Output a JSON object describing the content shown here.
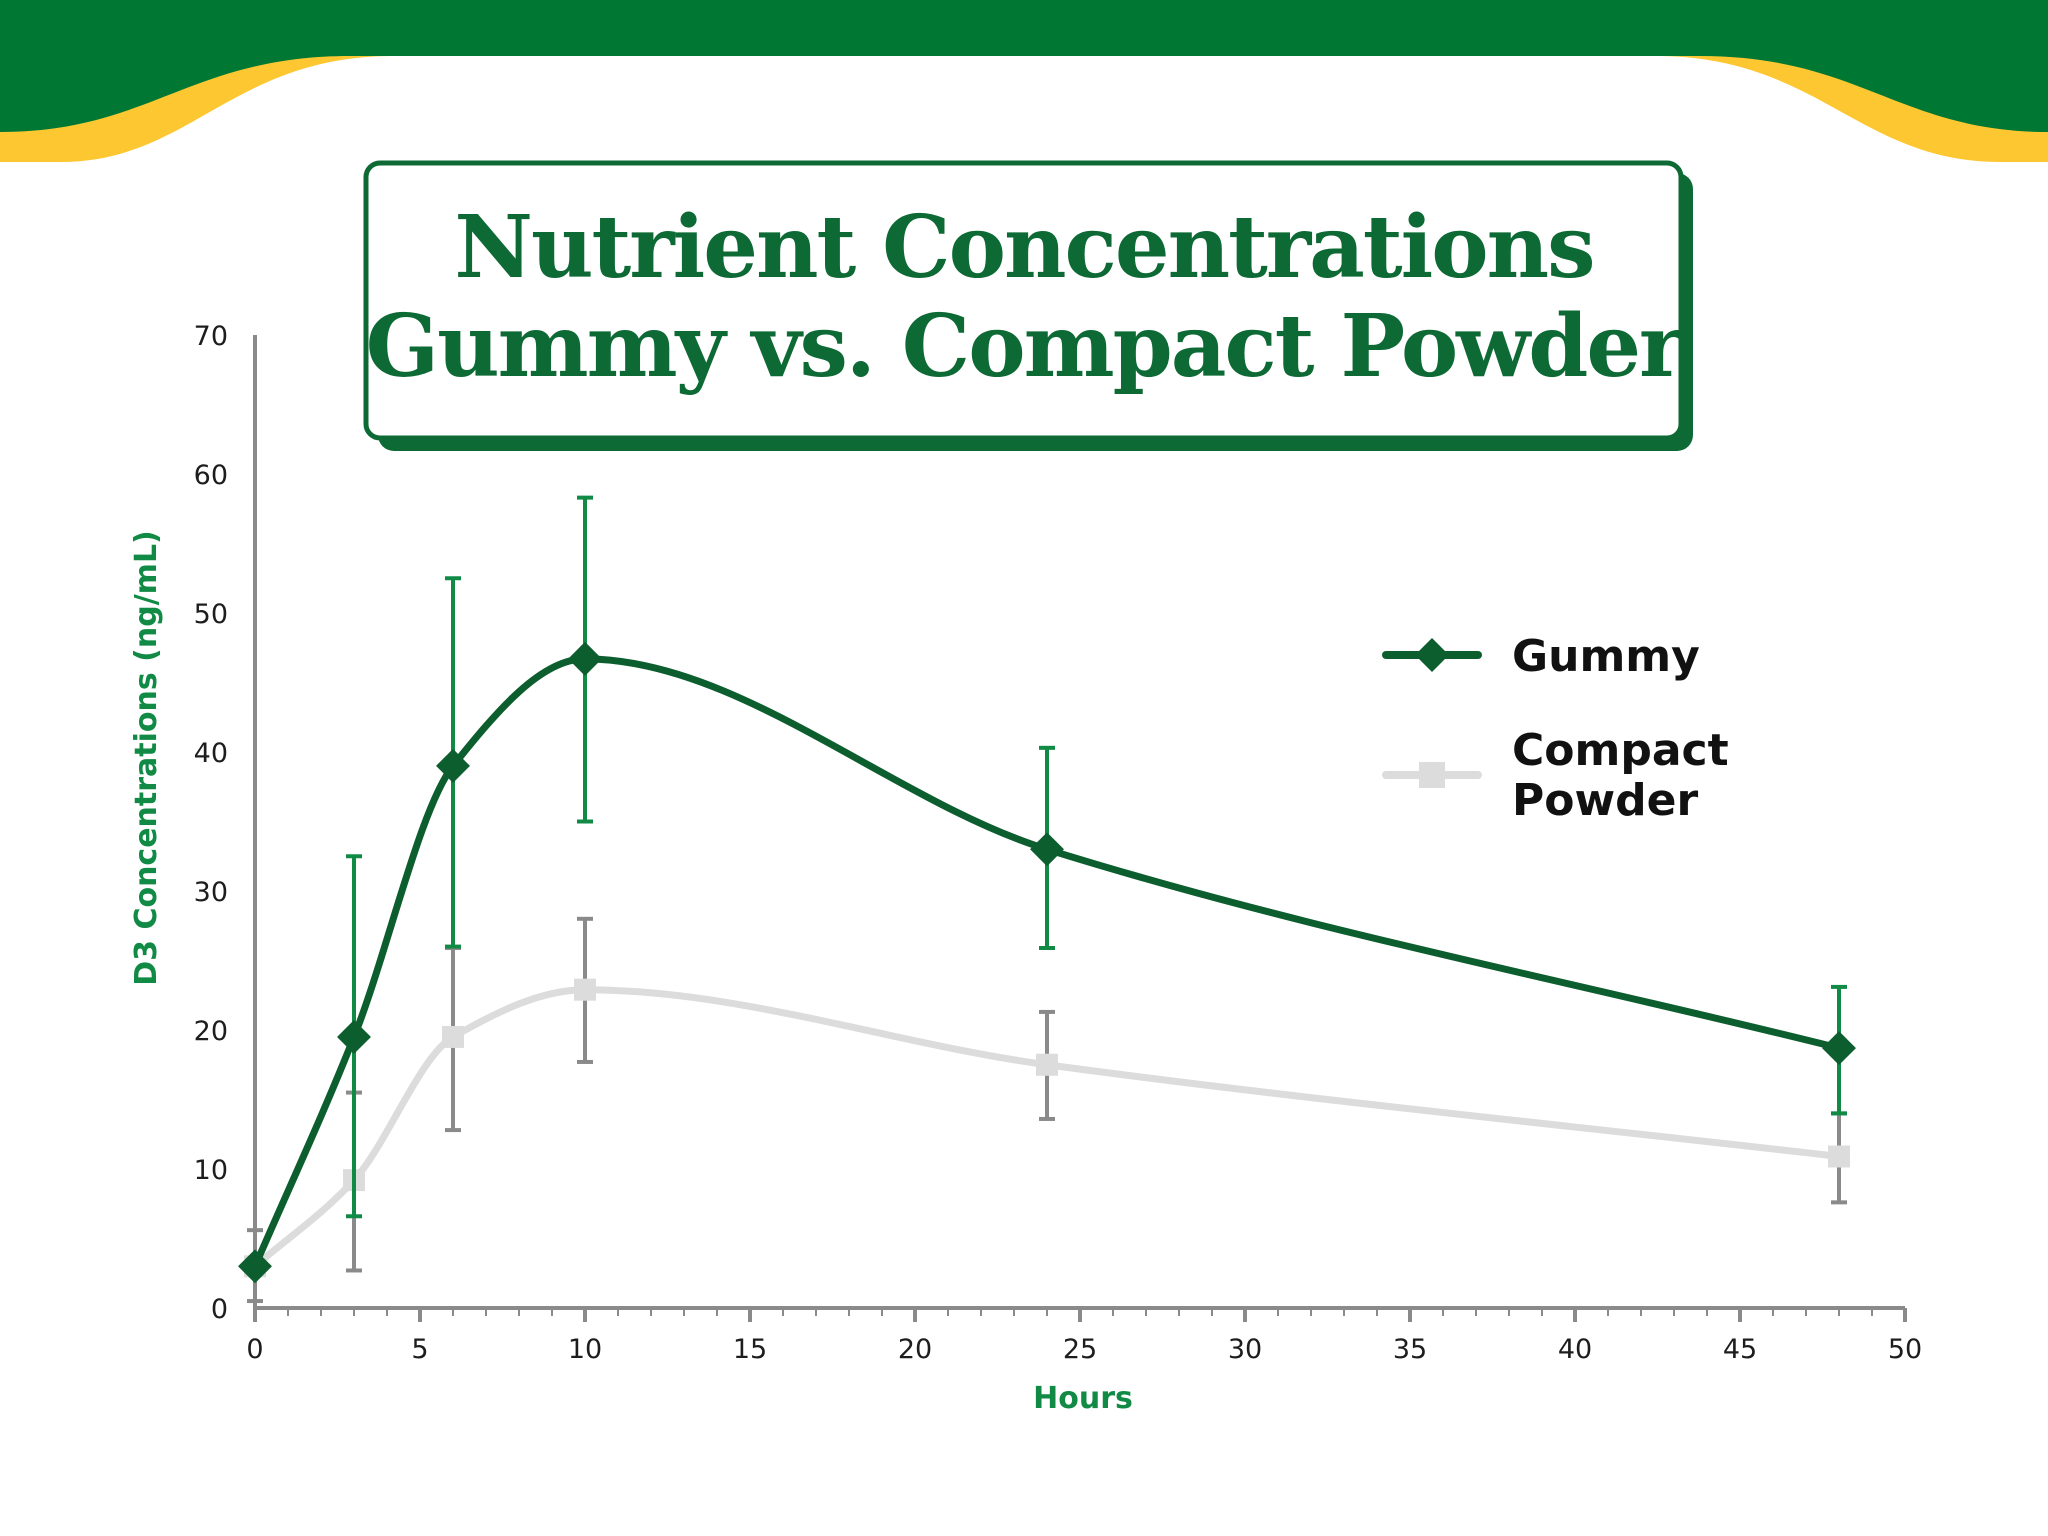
{
  "colors": {
    "banner_green": "#007833",
    "banner_yellow": "#fdc731",
    "title_green": "#0d6a35",
    "title_box_shadow": "#0d6a35",
    "gummy_line": "#0d5e2e",
    "gummy_error": "#118a45",
    "powder_line": "#dcdcdc",
    "powder_error": "#8a8a8a",
    "axis": "#8a8a8a",
    "axis_title": "#118a45"
  },
  "chart_data": {
    "type": "line",
    "title_lines": [
      "Nutrient Concentrations",
      "Gummy vs. Compact Powder"
    ],
    "xlabel": "Hours",
    "ylabel": "D3 Concentrations (ng/mL)",
    "xlim": [
      0,
      50
    ],
    "ylim": [
      0,
      70
    ],
    "x_ticks": [
      0,
      5,
      10,
      15,
      20,
      25,
      30,
      35,
      40,
      45,
      50
    ],
    "y_ticks": [
      0,
      10,
      20,
      30,
      40,
      50,
      60,
      70
    ],
    "x_tick_labels": [
      "0",
      "5",
      "10",
      "15",
      "20",
      "25",
      "30",
      "35",
      "40",
      "45",
      "50"
    ],
    "y_tick_labels": [
      "0",
      "10",
      "20",
      "30",
      "40",
      "50",
      "60",
      "70"
    ],
    "grid": false,
    "legend_position": "right",
    "series": [
      {
        "name": "Gummy",
        "marker": "diamond",
        "x": [
          0,
          3,
          6,
          10,
          24,
          48
        ],
        "y": [
          3,
          19.5,
          39,
          46.7,
          33,
          18.7
        ],
        "error_low": [
          3,
          6.6,
          26,
          35,
          25.9,
          14
        ],
        "error_high": [
          3,
          32.5,
          52.5,
          58.3,
          40.3,
          23.1
        ]
      },
      {
        "name": "Compact Powder",
        "legend_lines": [
          "Compact",
          "Powder"
        ],
        "marker": "square",
        "x": [
          0,
          3,
          6,
          10,
          24,
          48
        ],
        "y": [
          3,
          9.2,
          19.5,
          22.9,
          17.5,
          10.9
        ],
        "error_low": [
          0.5,
          2.7,
          12.8,
          17.7,
          13.6,
          7.6
        ],
        "error_high": [
          5.6,
          15.5,
          25.9,
          28,
          21.3,
          14
        ]
      }
    ]
  }
}
